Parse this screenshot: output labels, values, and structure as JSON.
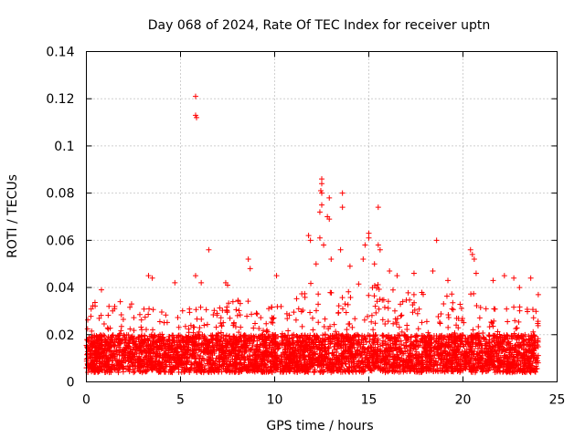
{
  "chart_data": {
    "type": "scatter",
    "title": "Day 068 of 2024, Rate Of TEC Index for receiver uptn",
    "xlabel": "GPS time / hours",
    "ylabel": "ROTI / TECUs",
    "xlim": [
      0,
      25
    ],
    "ylim": [
      0,
      0.14
    ],
    "xticks": [
      0,
      5,
      10,
      15,
      20,
      25
    ],
    "xtick_labels": [
      "0",
      "5",
      "10",
      "15",
      "20",
      "25"
    ],
    "yticks": [
      0,
      0.02,
      0.04,
      0.06,
      0.08,
      0.1,
      0.12,
      0.14
    ],
    "ytick_labels": [
      "0",
      "0.02",
      "0.04",
      "0.06",
      "0.08",
      "0.1",
      "0.12",
      "0.14"
    ],
    "grid": true,
    "marker": "+",
    "marker_color": "#ff0000",
    "series": [
      {
        "name": "ROTI",
        "x_range": [
          0,
          24
        ],
        "typical_range": [
          0.004,
          0.02
        ],
        "outliers": [
          [
            5.8,
            0.121
          ],
          [
            5.8,
            0.113
          ],
          [
            5.85,
            0.112
          ],
          [
            12.5,
            0.086
          ],
          [
            12.5,
            0.084
          ],
          [
            12.45,
            0.081
          ],
          [
            12.5,
            0.08
          ],
          [
            12.9,
            0.078
          ],
          [
            13.6,
            0.08
          ],
          [
            13.6,
            0.074
          ],
          [
            12.8,
            0.07
          ],
          [
            12.9,
            0.069
          ],
          [
            12.5,
            0.075
          ],
          [
            12.4,
            0.072
          ],
          [
            15.5,
            0.074
          ],
          [
            18.6,
            0.06
          ],
          [
            15.0,
            0.063
          ],
          [
            15.0,
            0.061
          ],
          [
            15.5,
            0.058
          ],
          [
            15.6,
            0.056
          ],
          [
            11.8,
            0.062
          ],
          [
            11.9,
            0.06
          ],
          [
            12.4,
            0.061
          ],
          [
            12.6,
            0.058
          ],
          [
            13.5,
            0.056
          ],
          [
            14.8,
            0.058
          ],
          [
            6.5,
            0.056
          ],
          [
            20.4,
            0.056
          ],
          [
            20.5,
            0.054
          ],
          [
            20.6,
            0.052
          ],
          [
            8.6,
            0.052
          ],
          [
            8.7,
            0.048
          ],
          [
            10.1,
            0.045
          ],
          [
            5.8,
            0.045
          ],
          [
            3.3,
            0.045
          ],
          [
            3.5,
            0.044
          ],
          [
            4.7,
            0.042
          ],
          [
            6.1,
            0.042
          ],
          [
            7.4,
            0.042
          ],
          [
            7.5,
            0.041
          ],
          [
            13.0,
            0.052
          ],
          [
            12.2,
            0.05
          ],
          [
            14.0,
            0.049
          ],
          [
            14.7,
            0.052
          ],
          [
            15.3,
            0.05
          ],
          [
            16.1,
            0.047
          ],
          [
            16.5,
            0.045
          ],
          [
            17.4,
            0.046
          ],
          [
            18.4,
            0.047
          ],
          [
            19.2,
            0.043
          ],
          [
            20.7,
            0.046
          ],
          [
            22.2,
            0.045
          ],
          [
            22.7,
            0.044
          ],
          [
            23.6,
            0.044
          ],
          [
            0.8,
            0.039
          ],
          [
            1.2,
            0.032
          ],
          [
            1.8,
            0.034
          ],
          [
            2.4,
            0.033
          ],
          [
            21.6,
            0.043
          ],
          [
            23.0,
            0.04
          ],
          [
            24.0,
            0.037
          ]
        ]
      }
    ]
  }
}
